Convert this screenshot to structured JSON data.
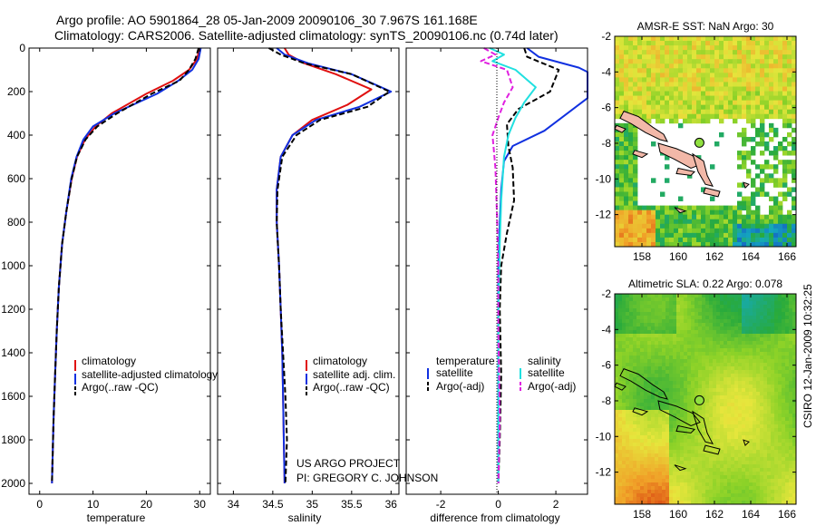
{
  "header": {
    "line1": "Argo profile: AO 5901864_28 05-Jan-2009 20090106_30 7.967S 161.168E",
    "line2": "Climatology: CARS2006. Satellite-adjusted climatology: synTS_20090106.nc (0.74d later)"
  },
  "colors": {
    "climatology": "#e01010",
    "satellite": "#1030e0",
    "argo": "#000000",
    "salinity_sat": "#20e0e0",
    "salinity_argo": "#e020e0"
  },
  "chart_data": [
    {
      "type": "line",
      "id": "temperature",
      "xlabel": "temperature",
      "ylabel": "",
      "xlim": [
        -2,
        32
      ],
      "ylim": [
        2050,
        0
      ],
      "xticks": [
        0,
        10,
        20,
        30
      ],
      "yticks": [
        0,
        200,
        400,
        600,
        800,
        1000,
        1200,
        1400,
        1600,
        1800,
        2000
      ],
      "series": [
        {
          "name": "climatology",
          "style": "solid",
          "color": "#e01010",
          "x": [
            30.0,
            29.5,
            28.0,
            25.0,
            20.0,
            13.5,
            10.5,
            8.5,
            7.0,
            6.0,
            5.0,
            4.2,
            3.6,
            3.2,
            2.9,
            2.6,
            2.4,
            2.3
          ],
          "y": [
            0,
            50,
            100,
            150,
            210,
            300,
            360,
            420,
            500,
            600,
            750,
            900,
            1100,
            1300,
            1500,
            1700,
            1900,
            2000
          ]
        },
        {
          "name": "satellite-adjusted climatology",
          "style": "solid",
          "color": "#1030e0",
          "x": [
            30.2,
            29.8,
            28.6,
            26.0,
            22.0,
            14.0,
            10.0,
            8.2,
            6.9,
            5.9,
            5.0,
            4.2,
            3.6,
            3.2,
            2.9,
            2.6,
            2.4,
            2.3
          ],
          "y": [
            0,
            50,
            100,
            150,
            210,
            300,
            360,
            420,
            500,
            600,
            750,
            900,
            1100,
            1300,
            1500,
            1700,
            1900,
            2000
          ]
        },
        {
          "name": "Argo(..raw -QC)",
          "style": "dashed",
          "color": "#000000",
          "x": [
            29.8,
            29.2,
            28.0,
            26.2,
            21.0,
            14.5,
            10.8,
            8.6,
            7.0,
            6.0,
            5.0,
            4.2,
            3.6,
            3.2,
            2.9,
            2.6,
            2.4,
            2.3
          ],
          "y": [
            0,
            50,
            100,
            150,
            210,
            300,
            360,
            420,
            500,
            600,
            750,
            900,
            1100,
            1300,
            1500,
            1700,
            1900,
            2000
          ]
        }
      ],
      "legend": [
        "climatology",
        "satellite-adjusted climatology",
        "Argo(..raw -QC)"
      ]
    },
    {
      "type": "line",
      "id": "salinity",
      "xlabel": "salinity",
      "xlim": [
        33.8,
        36.1
      ],
      "ylim": [
        2050,
        0
      ],
      "xticks": [
        34,
        34.5,
        35,
        35.5,
        36
      ],
      "series": [
        {
          "name": "climatology",
          "style": "solid",
          "color": "#e01010",
          "x": [
            34.65,
            34.7,
            34.9,
            35.3,
            35.75,
            35.45,
            35.0,
            34.75,
            34.6,
            34.55,
            34.55,
            34.58,
            34.6,
            34.62,
            34.63,
            34.64,
            34.65
          ],
          "y": [
            0,
            30,
            70,
            120,
            190,
            260,
            330,
            400,
            500,
            650,
            800,
            1000,
            1200,
            1400,
            1600,
            1800,
            2000
          ]
        },
        {
          "name": "satellite adj. clim.",
          "style": "solid",
          "color": "#1030e0",
          "x": [
            34.55,
            34.65,
            34.95,
            35.5,
            36.0,
            35.6,
            35.05,
            34.75,
            34.6,
            34.55,
            34.55,
            34.58,
            34.6,
            34.62,
            34.63,
            34.64,
            34.65
          ],
          "y": [
            0,
            30,
            70,
            120,
            200,
            270,
            330,
            400,
            500,
            650,
            800,
            1000,
            1200,
            1400,
            1600,
            1800,
            2000
          ]
        },
        {
          "name": "Argo(..raw -QC)",
          "style": "dashed",
          "color": "#000000",
          "x": [
            34.45,
            34.6,
            34.9,
            35.5,
            35.98,
            35.7,
            35.1,
            34.8,
            34.62,
            34.56,
            34.55,
            34.58,
            34.6,
            34.63,
            34.66,
            34.68,
            34.66
          ],
          "y": [
            0,
            30,
            70,
            120,
            200,
            270,
            330,
            400,
            500,
            650,
            800,
            1000,
            1200,
            1400,
            1600,
            1800,
            2000
          ]
        }
      ],
      "legend": [
        "climatology",
        "satellite adj. clim.",
        "Argo(..raw -QC)"
      ],
      "annotations": [
        "US ARGO PROJECT",
        "PI: GREGORY C. JOHNSON"
      ]
    },
    {
      "type": "line",
      "id": "difference",
      "xlabel": "difference from climatology",
      "xlim": [
        -3.2,
        3.1
      ],
      "ylim": [
        2050,
        0
      ],
      "xticks": [
        -2,
        0,
        2
      ],
      "series": [
        {
          "name": "temperature satellite",
          "style": "solid",
          "color": "#1030e0",
          "x": [
            1.0,
            1.4,
            2.8,
            3.1,
            3.1,
            1.6,
            0.5,
            0.2,
            0.1,
            0.05,
            0.0,
            0.0,
            0.0,
            0.0
          ],
          "y": [
            0,
            40,
            90,
            110,
            230,
            380,
            450,
            520,
            650,
            800,
            1000,
            1300,
            1600,
            2000
          ]
        },
        {
          "name": "temperature Argo(-adj)",
          "style": "dashed",
          "color": "#000000",
          "x": [
            0.9,
            1.0,
            2.1,
            1.8,
            0.7,
            0.3,
            0.35,
            0.5,
            0.55,
            0.3,
            0.1,
            0.05,
            0.1,
            0.05,
            0.0
          ],
          "y": [
            0,
            40,
            100,
            200,
            280,
            350,
            450,
            550,
            700,
            850,
            1000,
            1200,
            1500,
            1800,
            2000
          ]
        },
        {
          "name": "salinity satellite",
          "style": "solid",
          "color": "#20e0e0",
          "x": [
            -0.3,
            0.2,
            -0.2,
            0.6,
            1.3,
            0.9,
            0.6,
            0.35,
            0.2,
            0.1,
            0.05,
            0.0,
            0.0,
            0.0
          ],
          "y": [
            0,
            30,
            60,
            100,
            180,
            250,
            320,
            400,
            500,
            700,
            900,
            1200,
            1600,
            2000
          ]
        },
        {
          "name": "salinity Argo(-adj)",
          "style": "dashed",
          "color": "#e020e0",
          "x": [
            -0.5,
            -0.1,
            -0.6,
            0.3,
            0.5,
            0.2,
            0.0,
            -0.2,
            -0.1,
            -0.05,
            0.0,
            0.0,
            0.05,
            0.0
          ],
          "y": [
            0,
            30,
            60,
            100,
            180,
            250,
            320,
            400,
            550,
            750,
            1000,
            1300,
            1700,
            2000
          ]
        }
      ],
      "legend_groups": [
        {
          "heading": "temperature",
          "items": [
            "satellite",
            "Argo(-adj)"
          ]
        },
        {
          "heading": "salinity",
          "items": [
            "satellite",
            "Argo(-adj)"
          ]
        }
      ]
    },
    {
      "type": "heatmap",
      "id": "sst-map",
      "title": "AMSR-E SST: NaN Argo: 30",
      "xlim": [
        156.5,
        166.5
      ],
      "ylim": [
        -13.8,
        -2
      ],
      "xticks": [
        158,
        160,
        162,
        164,
        166
      ],
      "yticks": [
        -2,
        -4,
        -6,
        -8,
        -10,
        -12
      ],
      "argo_position": {
        "lon": 161.17,
        "lat": -7.97
      }
    },
    {
      "type": "heatmap",
      "id": "sla-map",
      "title": "Altimetric SLA: 0.22 Argo: 0.078",
      "xlim": [
        156.5,
        166.5
      ],
      "ylim": [
        -13.8,
        -2
      ],
      "xticks": [
        158,
        160,
        162,
        164,
        166
      ],
      "yticks": [
        -2,
        -4,
        -6,
        -8,
        -10,
        -12
      ],
      "argo_position": {
        "lon": 161.17,
        "lat": -7.97
      }
    }
  ],
  "side_label": "CSIRO 12-Jan-2009 10:32:25"
}
